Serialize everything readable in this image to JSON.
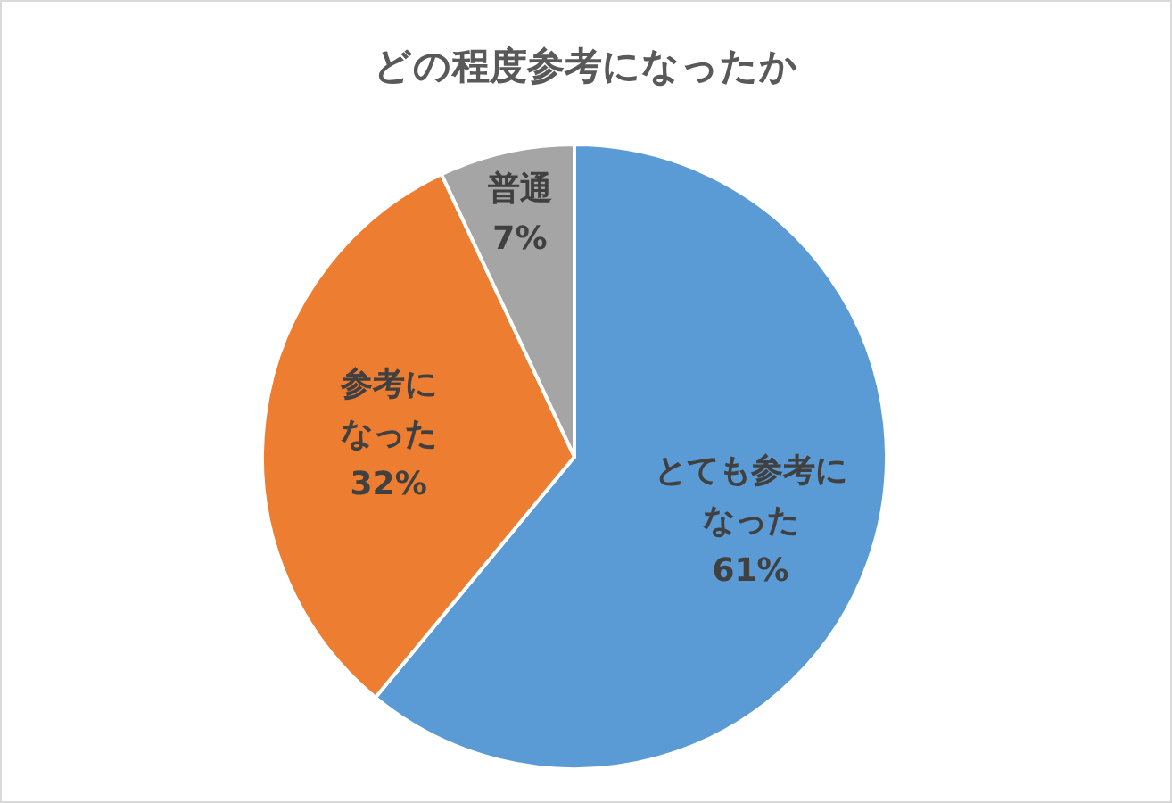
{
  "chart_data": {
    "type": "pie",
    "title": "どの程度参考になったか",
    "categories": [
      "とても参考になった",
      "参考になった",
      "普通"
    ],
    "values": [
      61,
      32,
      7
    ],
    "value_labels": [
      "61%",
      "32%",
      "7%"
    ],
    "colors": [
      "#5b9bd5",
      "#ed7d31",
      "#a5a5a5"
    ]
  }
}
